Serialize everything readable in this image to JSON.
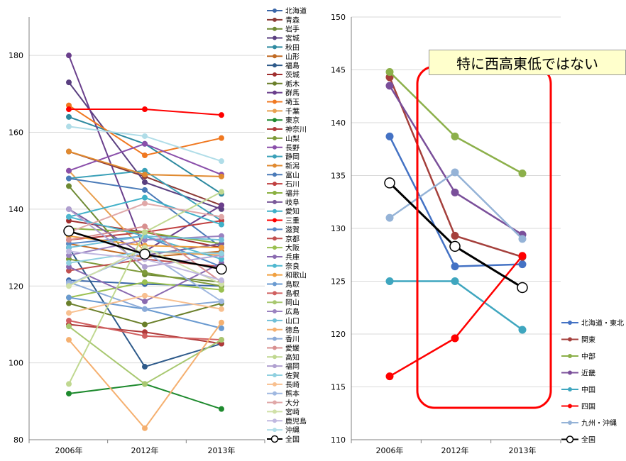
{
  "annotation": {
    "callout_text": "特に西高東低ではない",
    "box_color": "#ff0000",
    "callout_bg": "#ffffcc"
  },
  "chart_data": [
    {
      "type": "line",
      "categories": [
        "2006年",
        "2012年",
        "2013年"
      ],
      "ylim": [
        80,
        190
      ],
      "yticks": [
        80,
        100,
        120,
        140,
        160,
        180
      ],
      "grid": true,
      "legend": "right",
      "series": [
        {
          "name": "北海道",
          "color": "#3a66a8",
          "values": [
            121.5,
            120.5,
            120.0
          ]
        },
        {
          "name": "青森",
          "color": "#8c3a36",
          "values": [
            155.0,
            148.5,
            141.0
          ]
        },
        {
          "name": "岩手",
          "color": "#6e8a33",
          "values": [
            146.0,
            123.0,
            121.0
          ]
        },
        {
          "name": "宮城",
          "color": "#5a3f80",
          "values": [
            173.0,
            147.0,
            140.0
          ]
        },
        {
          "name": "秋田",
          "color": "#2e8aa0",
          "values": [
            164.0,
            157.0,
            144.0
          ]
        },
        {
          "name": "山形",
          "color": "#c06a24",
          "values": [
            131.0,
            127.5,
            129.0
          ]
        },
        {
          "name": "福島",
          "color": "#2e5a8a",
          "values": [
            130.0,
            99.0,
            105.0
          ]
        },
        {
          "name": "茨城",
          "color": "#a02e2e",
          "values": [
            137.0,
            134.0,
            130.0
          ]
        },
        {
          "name": "栃木",
          "color": "#6a7f2a",
          "values": [
            115.5,
            110.0,
            115.5
          ]
        },
        {
          "name": "群馬",
          "color": "#6a3f8c",
          "values": [
            180.0,
            129.0,
            141.0
          ]
        },
        {
          "name": "埼玉",
          "color": "#f07820",
          "values": [
            167.0,
            154.0,
            158.5
          ]
        },
        {
          "name": "千葉",
          "color": "#e8a050",
          "values": [
            150.0,
            129.0,
            128.0
          ]
        },
        {
          "name": "東京",
          "color": "#1e8a2e",
          "values": [
            92.0,
            94.5,
            88.0
          ]
        },
        {
          "name": "神奈川",
          "color": "#b03a3a",
          "values": [
            110.0,
            108.0,
            105.0
          ]
        },
        {
          "name": "山梨",
          "color": "#7e9a3a",
          "values": [
            127.0,
            123.5,
            120.0
          ]
        },
        {
          "name": "長野",
          "color": "#8a4faa",
          "values": [
            150.0,
            157.0,
            149.0
          ]
        },
        {
          "name": "静岡",
          "color": "#3aa0b8",
          "values": [
            148.0,
            150.0,
            137.0
          ]
        },
        {
          "name": "新潟",
          "color": "#e08a30",
          "values": [
            155.0,
            149.0,
            148.5
          ]
        },
        {
          "name": "富山",
          "color": "#4a7ab8",
          "values": [
            148.0,
            145.0,
            130.0
          ]
        },
        {
          "name": "石川",
          "color": "#c04040",
          "values": [
            132.0,
            134.0,
            137.0
          ]
        },
        {
          "name": "福井",
          "color": "#8ab040",
          "values": [
            135.0,
            134.0,
            131.0
          ]
        },
        {
          "name": "岐阜",
          "color": "#7a5a9a",
          "values": [
            140.0,
            128.0,
            131.0
          ]
        },
        {
          "name": "愛知",
          "color": "#40b0c8",
          "values": [
            138.0,
            143.0,
            136.0
          ]
        },
        {
          "name": "三重",
          "color": "#ff0000",
          "values": [
            166.0,
            166.0,
            164.5
          ]
        },
        {
          "name": "滋賀",
          "color": "#5a8ac8",
          "values": [
            131.0,
            133.0,
            125.0
          ]
        },
        {
          "name": "京都",
          "color": "#c05050",
          "values": [
            124.0,
            127.0,
            125.0
          ]
        },
        {
          "name": "大阪",
          "color": "#9ac050",
          "values": [
            117.0,
            121.0,
            119.0
          ]
        },
        {
          "name": "兵庫",
          "color": "#8a6ab0",
          "values": [
            125.0,
            116.0,
            126.0
          ]
        },
        {
          "name": "奈良",
          "color": "#50b8d0",
          "values": [
            138.0,
            133.0,
            127.0
          ]
        },
        {
          "name": "和歌山",
          "color": "#f0a040",
          "values": [
            133.0,
            130.5,
            130.0
          ]
        },
        {
          "name": "鳥取",
          "color": "#6a9ad0",
          "values": [
            117.0,
            114.0,
            109.0
          ]
        },
        {
          "name": "島根",
          "color": "#d06060",
          "values": [
            111.0,
            107.0,
            106.0
          ]
        },
        {
          "name": "岡山",
          "color": "#a8c870",
          "values": [
            109.5,
            94.5,
            106.0
          ]
        },
        {
          "name": "広島",
          "color": "#9a82c0",
          "values": [
            128.0,
            132.0,
            133.0
          ]
        },
        {
          "name": "山口",
          "color": "#70c0d8",
          "values": [
            130.0,
            133.0,
            132.0
          ]
        },
        {
          "name": "徳島",
          "color": "#f5b070",
          "values": [
            106.0,
            83.0,
            110.5
          ]
        },
        {
          "name": "香川",
          "color": "#8aaad8",
          "values": [
            121.0,
            114.0,
            116.0
          ]
        },
        {
          "name": "愛媛",
          "color": "#d89090",
          "values": [
            132.0,
            135.5,
            121.0
          ]
        },
        {
          "name": "高知",
          "color": "#c0d890",
          "values": [
            94.5,
            134.0,
            144.5
          ]
        },
        {
          "name": "福岡",
          "color": "#b0a0d0",
          "values": [
            140.0,
            125.0,
            128.0
          ]
        },
        {
          "name": "佐賀",
          "color": "#90d0e0",
          "values": [
            126.0,
            129.0,
            128.5
          ]
        },
        {
          "name": "長崎",
          "color": "#f8c090",
          "values": [
            113.0,
            117.5,
            114.0
          ]
        },
        {
          "name": "熊本",
          "color": "#a0b8e0",
          "values": [
            120.5,
            129.0,
            116.0
          ]
        },
        {
          "name": "大分",
          "color": "#e0a8a8",
          "values": [
            134.0,
            141.5,
            138.0
          ]
        },
        {
          "name": "宮崎",
          "color": "#d0e0a8",
          "values": [
            120.0,
            130.0,
            120.5
          ]
        },
        {
          "name": "鹿児島",
          "color": "#c0b8e0",
          "values": [
            129.0,
            127.0,
            121.5
          ]
        },
        {
          "name": "沖縄",
          "color": "#b0dde8",
          "values": [
            161.5,
            159.0,
            152.5
          ]
        },
        {
          "name": "全国",
          "color": "#000000",
          "values": [
            134.3,
            128.3,
            124.4
          ],
          "marker": "hollow"
        }
      ]
    },
    {
      "type": "line",
      "categories": [
        "2006年",
        "2012年",
        "2013年"
      ],
      "ylim": [
        110,
        150
      ],
      "yticks": [
        110,
        115,
        120,
        125,
        130,
        135,
        140,
        145,
        150
      ],
      "grid": true,
      "legend": "right",
      "series": [
        {
          "name": "北海道・東北",
          "color": "#4472c4",
          "values": [
            138.7,
            126.4,
            126.6
          ]
        },
        {
          "name": "関東",
          "color": "#a5403c",
          "values": [
            144.3,
            129.3,
            127.3
          ]
        },
        {
          "name": "中部",
          "color": "#8cb04a",
          "values": [
            144.8,
            138.7,
            135.2
          ]
        },
        {
          "name": "近畿",
          "color": "#7a4f9a",
          "values": [
            143.5,
            133.4,
            129.4
          ]
        },
        {
          "name": "中国",
          "color": "#3fa6bf",
          "values": [
            125.0,
            125.0,
            120.4
          ]
        },
        {
          "name": "四国",
          "color": "#ff0000",
          "values": [
            116.0,
            119.6,
            127.4
          ]
        },
        {
          "name": "九州・沖縄",
          "color": "#95b3d7",
          "values": [
            131.0,
            135.3,
            129.0
          ]
        },
        {
          "name": "全国",
          "color": "#000000",
          "values": [
            134.3,
            128.3,
            124.4
          ],
          "marker": "hollow"
        }
      ]
    }
  ]
}
